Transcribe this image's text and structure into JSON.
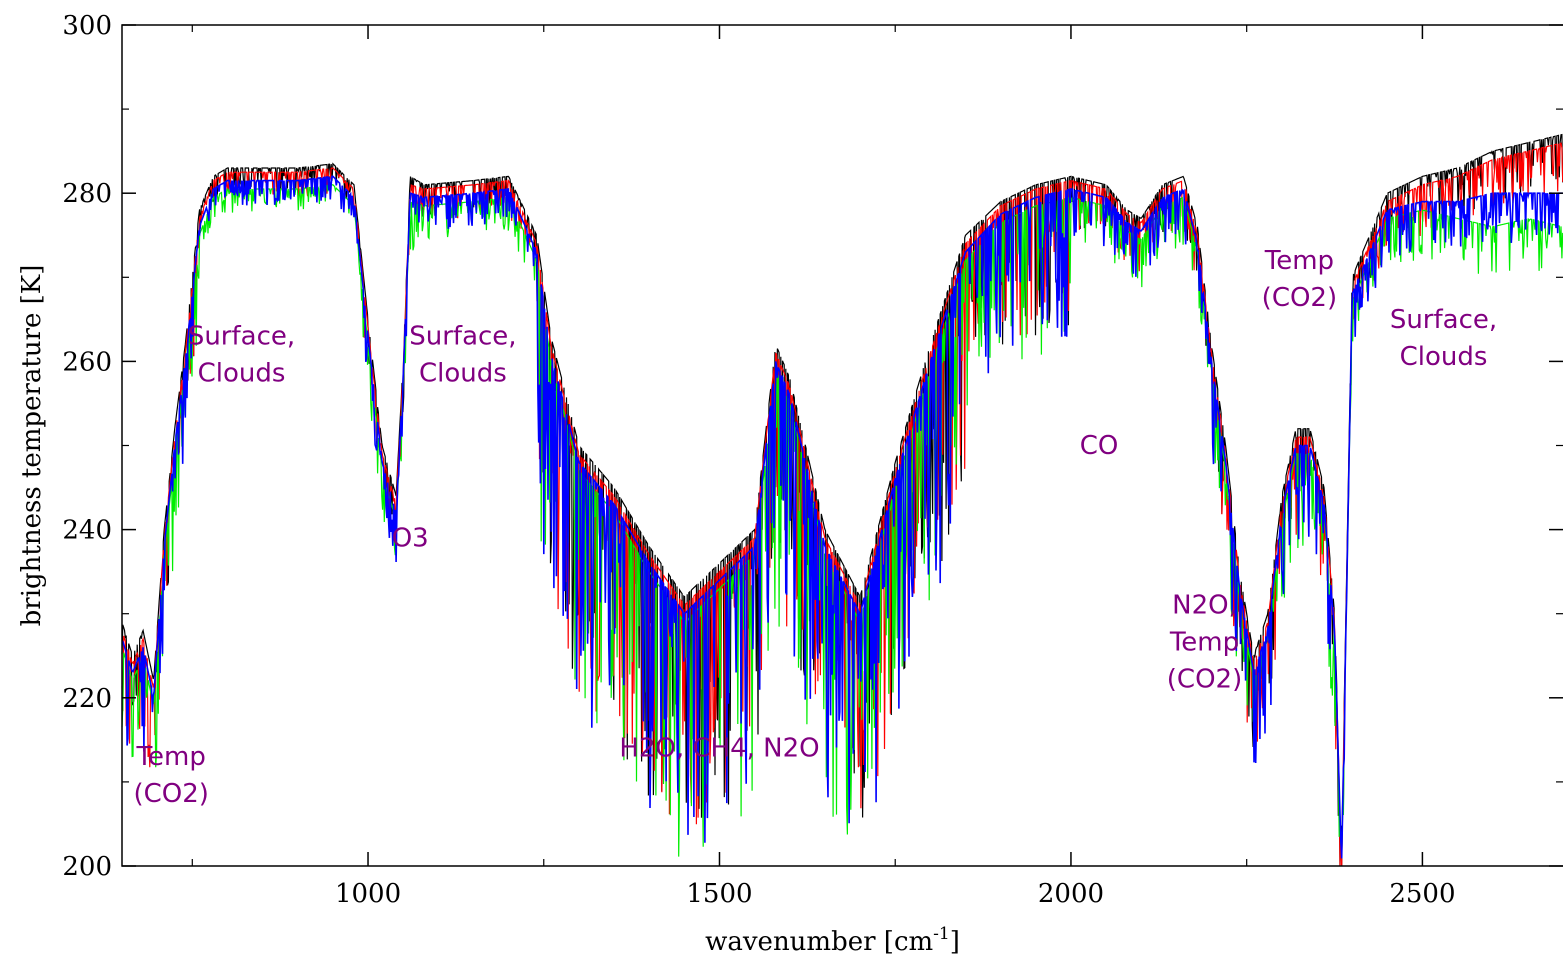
{
  "chart_data": {
    "type": "line",
    "title": "",
    "xlabel": "wavenumber [cm",
    "xlabel_sup": "-1",
    "xlabel_suffix": "]",
    "ylabel": "brightness temperature [K]",
    "xlim": [
      650,
      2700
    ],
    "ylim": [
      200,
      300
    ],
    "xticks": [
      1000,
      1500,
      2000,
      2500
    ],
    "yticks": [
      200,
      220,
      240,
      260,
      280,
      300
    ],
    "grid": false,
    "legend": "none",
    "series": [
      {
        "color": "#000000",
        "x": [
          650,
          665,
          680,
          695,
          710,
          725,
          740,
          760,
          780,
          800,
          850,
          900,
          950,
          980,
          1000,
          1020,
          1040,
          1050,
          1060,
          1080,
          1150,
          1200,
          1240,
          1260,
          1300,
          1350,
          1400,
          1450,
          1500,
          1550,
          1580,
          1600,
          1650,
          1700,
          1750,
          1800,
          1850,
          1900,
          1950,
          2000,
          2050,
          2080,
          2100,
          2130,
          2160,
          2180,
          2200,
          2220,
          2240,
          2260,
          2280,
          2300,
          2320,
          2340,
          2360,
          2375,
          2385,
          2400,
          2450,
          2500,
          2550,
          2600,
          2650,
          2700
        ],
        "y": [
          229,
          225,
          228,
          222,
          240,
          252,
          262,
          278,
          282,
          283,
          283,
          283,
          283.5,
          281,
          265,
          250,
          244,
          260,
          282,
          281,
          281.5,
          282,
          275,
          263,
          250,
          245,
          238,
          232,
          236,
          240,
          262,
          258,
          240,
          232,
          248,
          262,
          275,
          279,
          281,
          282,
          281,
          278,
          277,
          281,
          282,
          276,
          262,
          250,
          235,
          225,
          230,
          244,
          252,
          252,
          245,
          230,
          202,
          270,
          280,
          282,
          283,
          285,
          286,
          287
        ]
      },
      {
        "color": "#ff0000",
        "x": [
          650,
          665,
          680,
          695,
          710,
          725,
          740,
          760,
          780,
          800,
          850,
          900,
          950,
          980,
          1000,
          1020,
          1040,
          1050,
          1060,
          1080,
          1150,
          1200,
          1240,
          1260,
          1300,
          1350,
          1400,
          1450,
          1500,
          1550,
          1580,
          1600,
          1650,
          1700,
          1750,
          1800,
          1850,
          1900,
          1950,
          2000,
          2050,
          2080,
          2100,
          2130,
          2160,
          2180,
          2200,
          2220,
          2240,
          2260,
          2280,
          2300,
          2320,
          2340,
          2360,
          2375,
          2385,
          2400,
          2450,
          2500,
          2550,
          2600,
          2650,
          2700
        ],
        "y": [
          228,
          224,
          227,
          221,
          239,
          251,
          261,
          277,
          281.5,
          282.5,
          282.5,
          282.5,
          283,
          280.5,
          264,
          249,
          243,
          259,
          281,
          280.5,
          281,
          281.5,
          274,
          262,
          249,
          244,
          237,
          231,
          235,
          239,
          261,
          257,
          239,
          231,
          247,
          261,
          274,
          278.5,
          280.5,
          281.5,
          280.5,
          277.5,
          276.5,
          280.5,
          281.5,
          275,
          261,
          249,
          234,
          224,
          229,
          243,
          251,
          251,
          244,
          229,
          201,
          269,
          279,
          281,
          282,
          284,
          285,
          286
        ]
      },
      {
        "color": "#00ee00",
        "x": [
          650,
          665,
          680,
          695,
          710,
          725,
          740,
          760,
          780,
          800,
          850,
          900,
          950,
          980,
          1000,
          1020,
          1040,
          1050,
          1060,
          1080,
          1150,
          1200,
          1240,
          1260,
          1300,
          1350,
          1400,
          1450,
          1500,
          1550,
          1580,
          1600,
          1650,
          1700,
          1750,
          1800,
          1850,
          1900,
          1950,
          2000,
          2050,
          2080,
          2100,
          2130,
          2160,
          2180,
          2200,
          2220,
          2240,
          2260,
          2280,
          2300,
          2320,
          2340,
          2360,
          2375,
          2385,
          2400,
          2450,
          2500,
          2550,
          2600,
          2650,
          2700
        ],
        "y": [
          226,
          222,
          225,
          219,
          237,
          249,
          259,
          275,
          279.5,
          280.5,
          280.5,
          280.5,
          281,
          278.5,
          262,
          247,
          241,
          257,
          279,
          278.5,
          279,
          279.5,
          272,
          260,
          247,
          242,
          235,
          229,
          233,
          237,
          259,
          255,
          237,
          229,
          245,
          259,
          272,
          276.5,
          278.5,
          279.5,
          278.5,
          275.5,
          274.5,
          278.5,
          279.5,
          273,
          259,
          247,
          232,
          222,
          227,
          241,
          249,
          249,
          242,
          227,
          200,
          267,
          277,
          278,
          277,
          276,
          277,
          276
        ]
      },
      {
        "color": "#0000ff",
        "x": [
          650,
          665,
          680,
          695,
          710,
          725,
          740,
          760,
          780,
          800,
          850,
          900,
          950,
          980,
          1000,
          1020,
          1040,
          1050,
          1060,
          1080,
          1150,
          1200,
          1240,
          1260,
          1300,
          1350,
          1400,
          1450,
          1500,
          1550,
          1580,
          1600,
          1650,
          1700,
          1750,
          1800,
          1850,
          1900,
          1950,
          2000,
          2050,
          2080,
          2100,
          2130,
          2160,
          2180,
          2200,
          2220,
          2240,
          2260,
          2280,
          2300,
          2320,
          2340,
          2360,
          2375,
          2385,
          2400,
          2450,
          2500,
          2550,
          2600,
          2650,
          2700
        ],
        "y": [
          227,
          223,
          226,
          220,
          238,
          250,
          260,
          276,
          280.5,
          281.5,
          281.5,
          281.5,
          282,
          279.5,
          263,
          248,
          242,
          258,
          280,
          279.5,
          280,
          280.5,
          273,
          261,
          248,
          243,
          236,
          230,
          234,
          238,
          260,
          256,
          238,
          230,
          246,
          260,
          273,
          277.5,
          279.5,
          280.5,
          279.5,
          276.5,
          275.5,
          279.5,
          280.5,
          274,
          260,
          248,
          233,
          223,
          228,
          242,
          250,
          250,
          243,
          228,
          200,
          268,
          278,
          279,
          279,
          280,
          280,
          280
        ]
      }
    ],
    "annotations": [
      {
        "lines": [
          "Surface,",
          "Clouds"
        ],
        "x": 820,
        "y": 262
      },
      {
        "lines": [
          "Surface,",
          "Clouds"
        ],
        "x": 1135,
        "y": 262
      },
      {
        "lines": [
          "Surface,",
          "Clouds"
        ],
        "x": 2530,
        "y": 264
      },
      {
        "lines": [
          "O3"
        ],
        "x": 1060,
        "y": 238
      },
      {
        "lines": [
          "H2O, CH4, N2O"
        ],
        "x": 1500,
        "y": 213
      },
      {
        "lines": [
          "CO"
        ],
        "x": 2040,
        "y": 249
      },
      {
        "lines": [
          "N2O,",
          "Temp",
          "(CO2)"
        ],
        "x": 2190,
        "y": 230
      },
      {
        "lines": [
          "Temp",
          "(CO2)"
        ],
        "x": 2325,
        "y": 271
      },
      {
        "lines": [
          "Temp",
          "(CO2)"
        ],
        "x": 720,
        "y": 212
      }
    ]
  }
}
